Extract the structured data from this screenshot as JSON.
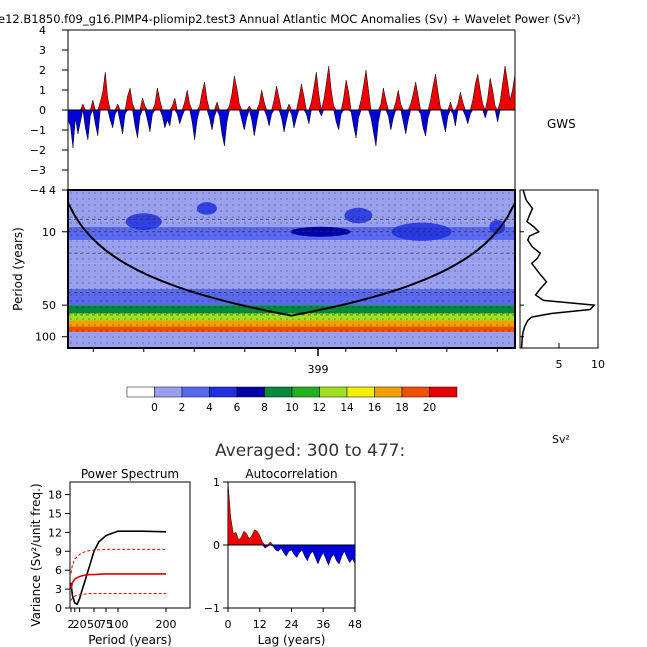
{
  "title": "e12.B1850.f09_g16.PIMP4-pliomip2.test3 Annual Atlantic MOC Anomalies (Sv) + Wavelet Power (Sv²)",
  "colors": {
    "positive": "#ee0000",
    "negative": "#0000dd",
    "cone": "#000000",
    "ref_line": "#000000",
    "spectrum_main": "#000000",
    "spectrum_ci": "#dd0000"
  },
  "chart_data": [
    {
      "id": "anomaly",
      "type": "area",
      "title": "",
      "xlabel": "",
      "ylabel": "",
      "ylim": [
        -4,
        4
      ],
      "yticks": [
        "4",
        "3",
        "2",
        "1",
        "0",
        "−1",
        "−2",
        "−3",
        "−4"
      ],
      "xlim": [
        300,
        477
      ],
      "note": "Yearly anomaly series shown as filled red (positive) / blue (negative) area about 0",
      "x_start": 300,
      "values": [
        -0.5,
        -0.8,
        -1.9,
        -0.4,
        -1.2,
        -0.6,
        0.3,
        -0.9,
        -1.5,
        -0.3,
        0.5,
        -0.7,
        -1.3,
        0.4,
        0.9,
        1.9,
        0.6,
        -0.5,
        -0.9,
        -0.2,
        0.3,
        -0.6,
        -1.2,
        -0.2,
        0.7,
        1.1,
        0.3,
        -0.8,
        -1.4,
        -0.3,
        0.6,
        0.2,
        -0.5,
        -1.1,
        -0.2,
        0.3,
        1.1,
        0.5,
        -0.3,
        -0.9,
        -0.5,
        -0.8,
        0.2,
        0.6,
        -0.2,
        -0.7,
        -0.3,
        0.4,
        1.0,
        0.3,
        -0.6,
        -1.5,
        -0.5,
        0.2,
        0.9,
        1.4,
        0.5,
        -0.4,
        -1.0,
        -0.3,
        0.4,
        -0.3,
        -1.2,
        -1.8,
        -0.6,
        0.2,
        0.8,
        1.7,
        1.1,
        0.3,
        -0.5,
        -1.0,
        -0.4,
        0.2,
        -0.5,
        -1.3,
        -0.6,
        0.3,
        1.0,
        0.4,
        -0.3,
        -0.8,
        -0.2,
        0.5,
        1.2,
        0.6,
        -0.4,
        -1.1,
        -0.5,
        0.3,
        -0.2,
        -0.9,
        -0.4,
        0.6,
        1.3,
        0.7,
        -0.2,
        -0.7,
        0.4,
        1.1,
        1.9,
        0.8,
        -0.3,
        0.5,
        1.3,
        2.2,
        1.0,
        0.2,
        -0.6,
        -1.0,
        -0.2,
        0.6,
        1.5,
        0.9,
        -0.1,
        -0.8,
        -1.4,
        -0.4,
        0.5,
        1.2,
        2.0,
        1.0,
        -0.4,
        -1.1,
        -1.8,
        -0.6,
        0.3,
        1.1,
        0.5,
        -0.3,
        -1.0,
        -0.4,
        0.4,
        1.0,
        0.3,
        -0.6,
        -1.2,
        -0.5,
        0.3,
        0.8,
        1.4,
        0.7,
        -0.2,
        -0.9,
        -1.3,
        -0.4,
        0.5,
        1.2,
        1.8,
        0.9,
        0.1,
        -0.6,
        -1.1,
        -0.3,
        0.4,
        -0.2,
        -0.8,
        0.3,
        0.9,
        0.4,
        -0.3,
        -0.7,
        -0.2,
        0.5,
        1.3,
        1.8,
        1.0,
        0.3,
        -0.4,
        0.6,
        1.6,
        1.0,
        0.2,
        -0.6,
        0.4,
        1.3,
        2.2,
        1.4,
        0.5,
        1.0,
        1.8
      ],
      "right_label": "GWS"
    },
    {
      "id": "wavelet",
      "type": "heatmap",
      "title": "",
      "xlabel": "",
      "ylabel": "Period (years)",
      "yticks": [
        "4",
        "10",
        "50",
        "100"
      ],
      "ytick_values": [
        4,
        10,
        50,
        100
      ],
      "ylim": [
        4,
        128
      ],
      "xticks": [
        "399"
      ],
      "xtick_values": [
        399
      ],
      "xlim": [
        300,
        477
      ],
      "note": "Wavelet power in Sv², shaded with the colorbar levels; black U-shaped curve is the cone of influence; dotted lines mark significance",
      "band_levels": [
        {
          "period": [
            4,
            6
          ],
          "level": 2
        },
        {
          "period": [
            6,
            9
          ],
          "level": 2
        },
        {
          "period": [
            9,
            12
          ],
          "level": 3
        },
        {
          "period": [
            12,
            20
          ],
          "level": 2
        },
        {
          "period": [
            20,
            35
          ],
          "level": 2
        },
        {
          "period": [
            35,
            50
          ],
          "level": 4
        },
        {
          "period": [
            50,
            60
          ],
          "level": 10
        },
        {
          "period": [
            60,
            70
          ],
          "level": 14
        },
        {
          "period": [
            70,
            80
          ],
          "level": 18
        },
        {
          "period": [
            80,
            90
          ],
          "level": 20
        },
        {
          "period": [
            90,
            128
          ],
          "level": 2
        }
      ]
    },
    {
      "id": "gws",
      "type": "line",
      "title": "",
      "xlabel": "",
      "ylabel": "",
      "xlim": [
        0,
        10
      ],
      "xticks": [
        "5",
        "10"
      ],
      "xtick_values": [
        5,
        10
      ],
      "unit_label": "Sv²",
      "note": "Global wavelet spectrum: power (x) versus period (y, same axis as wavelet panel)",
      "period": [
        4,
        5,
        6,
        7,
        8,
        9,
        10,
        11,
        12,
        14,
        16,
        18,
        20,
        25,
        30,
        35,
        40,
        45,
        50,
        55,
        60,
        65,
        70,
        80,
        90,
        100,
        128
      ],
      "power": [
        0.4,
        0.8,
        1.6,
        1.2,
        0.9,
        1.8,
        2.4,
        1.2,
        1.0,
        1.6,
        2.6,
        2.2,
        1.5,
        2.5,
        3.4,
        2.6,
        2.0,
        3.0,
        9.5,
        9.0,
        4.0,
        1.5,
        1.0,
        0.6,
        0.4,
        0.3,
        0.2
      ]
    },
    {
      "id": "colorbar",
      "type": "bar",
      "title": "",
      "labels": [
        "0",
        "2",
        "4",
        "6",
        "8",
        "10",
        "12",
        "14",
        "16",
        "18",
        "20"
      ],
      "fills": [
        "#ffffff",
        "#9aa0f0",
        "#5a6af0",
        "#2030e0",
        "#0000aa",
        "#008a3a",
        "#20b020",
        "#a0e020",
        "#f0f000",
        "#f0a000",
        "#f05000",
        "#e80000"
      ]
    },
    {
      "id": "power_spectrum",
      "type": "line",
      "title": "Power Spectrum",
      "xlabel": "Period (years)",
      "ylabel": "Variance (Sv²/unit freq.)",
      "ylim": [
        0,
        20
      ],
      "yticks": [
        "0",
        "3",
        "6",
        "9",
        "12",
        "15",
        "18"
      ],
      "ytick_values": [
        0,
        3,
        6,
        9,
        12,
        15,
        18
      ],
      "xlim": [
        0,
        250
      ],
      "xticks": [
        "2",
        "10",
        "20",
        "50",
        "75",
        "100",
        "200"
      ],
      "xtick_values": [
        2,
        10,
        20,
        50,
        75,
        100,
        200
      ],
      "series": [
        {
          "x": [
            2,
            5,
            10,
            15,
            20,
            25,
            30,
            40,
            50,
            60,
            75,
            100,
            150,
            200
          ],
          "y": [
            4.0,
            2.0,
            0.8,
            0.6,
            1.5,
            2.8,
            4.0,
            6.5,
            9.0,
            10.5,
            11.5,
            12.2,
            12.2,
            12.1
          ]
        },
        {
          "x": [
            2,
            5,
            10,
            20,
            30,
            40,
            50,
            75,
            100,
            150,
            200
          ],
          "y": [
            3.0,
            4.0,
            4.6,
            5.0,
            5.2,
            5.3,
            5.3,
            5.4,
            5.4,
            5.4,
            5.4
          ]
        },
        {
          "x": [
            2,
            5,
            10,
            20,
            30,
            40,
            50,
            75,
            100,
            150,
            200
          ],
          "y": [
            5.5,
            6.8,
            7.8,
            8.5,
            8.9,
            9.1,
            9.2,
            9.3,
            9.3,
            9.3,
            9.3
          ]
        },
        {
          "x": [
            2,
            5,
            10,
            20,
            30,
            40,
            50,
            75,
            100,
            150,
            200
          ],
          "y": [
            1.2,
            1.6,
            1.9,
            2.1,
            2.2,
            2.3,
            2.3,
            2.3,
            2.3,
            2.3,
            2.3
          ]
        }
      ]
    },
    {
      "id": "autocorrelation",
      "type": "area",
      "title": "Autocorrelation",
      "xlabel": "Lag (years)",
      "ylabel": "",
      "ylim": [
        -1,
        1
      ],
      "yticks": [
        "1",
        "0",
        "−1"
      ],
      "ytick_values": [
        1,
        0,
        -1
      ],
      "xlim": [
        0,
        48
      ],
      "xticks": [
        "0",
        "12",
        "24",
        "36",
        "48"
      ],
      "xtick_values": [
        0,
        12,
        24,
        36,
        48
      ],
      "values": [
        1.0,
        0.45,
        0.18,
        0.2,
        0.08,
        0.12,
        0.22,
        0.18,
        0.1,
        0.15,
        0.24,
        0.22,
        0.15,
        0.05,
        -0.05,
        -0.02,
        0.05,
        -0.02,
        -0.08,
        -0.1,
        -0.05,
        -0.12,
        -0.18,
        -0.1,
        -0.08,
        -0.15,
        -0.2,
        -0.12,
        -0.08,
        -0.18,
        -0.25,
        -0.15,
        -0.1,
        -0.2,
        -0.3,
        -0.2,
        -0.12,
        -0.22,
        -0.32,
        -0.2,
        -0.15,
        -0.25,
        -0.3,
        -0.18,
        -0.1,
        -0.2,
        -0.28,
        -0.22,
        -0.3
      ]
    }
  ],
  "subtitle": "Averaged: 300 to 477:"
}
